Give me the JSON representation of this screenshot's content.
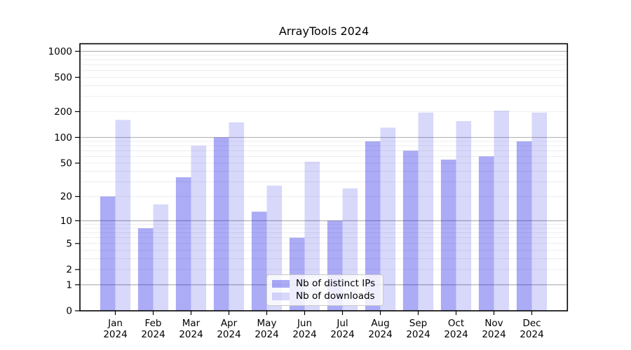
{
  "title": "ArrayTools 2024",
  "colors": {
    "bar_ips": "rgba(10,10,228,0.34)",
    "bar_downloads": "rgba(10,10,228,0.16)",
    "grid_major": "#ababab",
    "grid_minor": "#ececec",
    "axis": "#000000"
  },
  "chart_data": {
    "type": "bar",
    "title": "ArrayTools 2024",
    "categories": [
      {
        "month": "Jan",
        "year": "2024"
      },
      {
        "month": "Feb",
        "year": "2024"
      },
      {
        "month": "Mar",
        "year": "2024"
      },
      {
        "month": "Apr",
        "year": "2024"
      },
      {
        "month": "May",
        "year": "2024"
      },
      {
        "month": "Jun",
        "year": "2024"
      },
      {
        "month": "Jul",
        "year": "2024"
      },
      {
        "month": "Aug",
        "year": "2024"
      },
      {
        "month": "Sep",
        "year": "2024"
      },
      {
        "month": "Oct",
        "year": "2024"
      },
      {
        "month": "Nov",
        "year": "2024"
      },
      {
        "month": "Dec",
        "year": "2024"
      }
    ],
    "series": [
      {
        "name": "Nb of distinct IPs",
        "values": [
          20,
          8,
          34,
          100,
          13,
          6,
          10,
          90,
          70,
          55,
          60,
          90
        ]
      },
      {
        "name": "Nb of downloads",
        "values": [
          160,
          16,
          80,
          150,
          27,
          52,
          25,
          130,
          195,
          155,
          205,
          195
        ]
      }
    ],
    "xlabel": "",
    "ylabel": "",
    "yscale": "log10(1+x)",
    "ylim": [
      0,
      1225
    ],
    "yticks": [
      0,
      1,
      2,
      5,
      10,
      20,
      50,
      100,
      200,
      500,
      1000
    ],
    "grid": {
      "major": [
        1,
        10,
        100,
        1000
      ],
      "minor": [
        2,
        3,
        4,
        5,
        6,
        7,
        8,
        9,
        20,
        30,
        40,
        50,
        60,
        70,
        80,
        90,
        200,
        300,
        400,
        500,
        600,
        700,
        800,
        900
      ]
    },
    "legend_position": "lower center"
  }
}
